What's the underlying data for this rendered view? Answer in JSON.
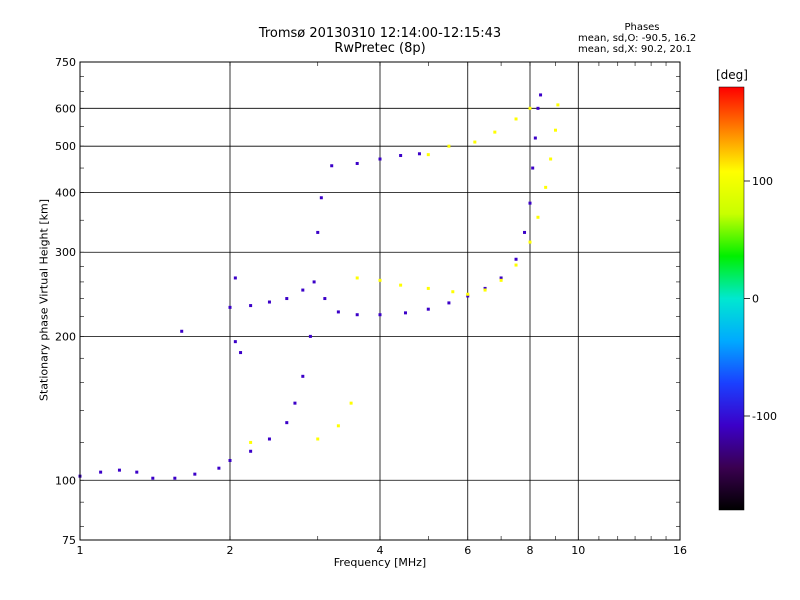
{
  "header": {
    "title_line1": "Tromsø 20130310 12:14:00-12:15:43",
    "title_line2": "RwPretec (8p)"
  },
  "stats": {
    "heading": "Phases",
    "o_line": "mean, sd,O: -90.5, 16.2",
    "x_line": "mean, sd,X:  90.2, 20.1"
  },
  "colorbar": {
    "unit": "[deg]",
    "ticks": [
      "100",
      "0",
      "-100"
    ],
    "range": [
      -180,
      180
    ],
    "palette": [
      "#000000",
      "#3a0050",
      "#3b00c8",
      "#1a40ff",
      "#00aaff",
      "#00e8d0",
      "#00f000",
      "#c8ff00",
      "#ffff00",
      "#ff8000",
      "#ff0000"
    ]
  },
  "chart_data": {
    "type": "scatter",
    "title": "Tromsø 20130310 12:14:00-12:15:43",
    "subtitle": "RwPretec (8p)",
    "xlabel": "Frequency [MHz]",
    "ylabel": "Stationary phase Virtual Height [km]",
    "x_scale": "log",
    "y_scale": "log",
    "xlim": [
      1,
      16
    ],
    "ylim": [
      75,
      750
    ],
    "x_ticks": [
      1,
      2,
      4,
      6,
      8,
      10,
      16
    ],
    "y_ticks": [
      75,
      100,
      200,
      300,
      400,
      500,
      600,
      750
    ],
    "grid": true,
    "series": [
      {
        "points": [
          [
            1.0,
            102
          ],
          [
            1.1,
            104
          ],
          [
            1.2,
            105
          ],
          [
            1.3,
            104
          ],
          [
            1.4,
            101
          ],
          [
            1.55,
            101
          ],
          [
            1.7,
            103
          ],
          [
            1.9,
            106
          ],
          [
            2.0,
            110
          ],
          [
            2.2,
            115
          ],
          [
            2.4,
            122
          ],
          [
            2.6,
            132
          ],
          [
            2.7,
            145
          ],
          [
            2.8,
            165
          ],
          [
            2.9,
            200
          ],
          [
            2.95,
            260
          ],
          [
            3.0,
            330
          ],
          [
            3.05,
            390
          ],
          [
            2.0,
            230
          ],
          [
            2.2,
            232
          ],
          [
            2.4,
            236
          ],
          [
            2.6,
            240
          ],
          [
            2.8,
            250
          ],
          [
            3.1,
            240
          ],
          [
            3.3,
            225
          ],
          [
            3.6,
            222
          ],
          [
            4.0,
            222
          ],
          [
            4.5,
            224
          ],
          [
            5.0,
            228
          ],
          [
            5.5,
            235
          ],
          [
            6.0,
            243
          ],
          [
            6.5,
            252
          ],
          [
            7.0,
            265
          ],
          [
            7.5,
            290
          ],
          [
            7.8,
            330
          ],
          [
            8.0,
            380
          ],
          [
            8.1,
            450
          ],
          [
            8.2,
            520
          ],
          [
            8.3,
            600
          ],
          [
            8.4,
            640
          ],
          [
            3.2,
            455
          ],
          [
            3.6,
            460
          ],
          [
            4.0,
            470
          ],
          [
            4.4,
            478
          ],
          [
            4.8,
            482
          ],
          [
            2.05,
            195
          ],
          [
            2.1,
            185
          ],
          [
            1.6,
            205
          ],
          [
            2.05,
            265
          ]
        ],
        "phase": -100
      },
      {
        "points": [
          [
            3.6,
            265
          ],
          [
            4.0,
            262
          ],
          [
            4.4,
            256
          ],
          [
            5.0,
            252
          ],
          [
            5.6,
            248
          ],
          [
            6.0,
            245
          ],
          [
            6.5,
            250
          ],
          [
            7.0,
            262
          ],
          [
            7.5,
            282
          ],
          [
            8.0,
            315
          ],
          [
            8.3,
            355
          ],
          [
            8.6,
            410
          ],
          [
            8.8,
            470
          ],
          [
            9.0,
            540
          ],
          [
            9.1,
            610
          ],
          [
            5.0,
            480
          ],
          [
            5.5,
            500
          ],
          [
            6.2,
            510
          ],
          [
            6.8,
            535
          ],
          [
            7.5,
            570
          ],
          [
            8.0,
            600
          ],
          [
            3.5,
            145
          ],
          [
            3.3,
            130
          ],
          [
            3.0,
            122
          ],
          [
            2.2,
            120
          ]
        ],
        "phase": 100
      }
    ]
  }
}
